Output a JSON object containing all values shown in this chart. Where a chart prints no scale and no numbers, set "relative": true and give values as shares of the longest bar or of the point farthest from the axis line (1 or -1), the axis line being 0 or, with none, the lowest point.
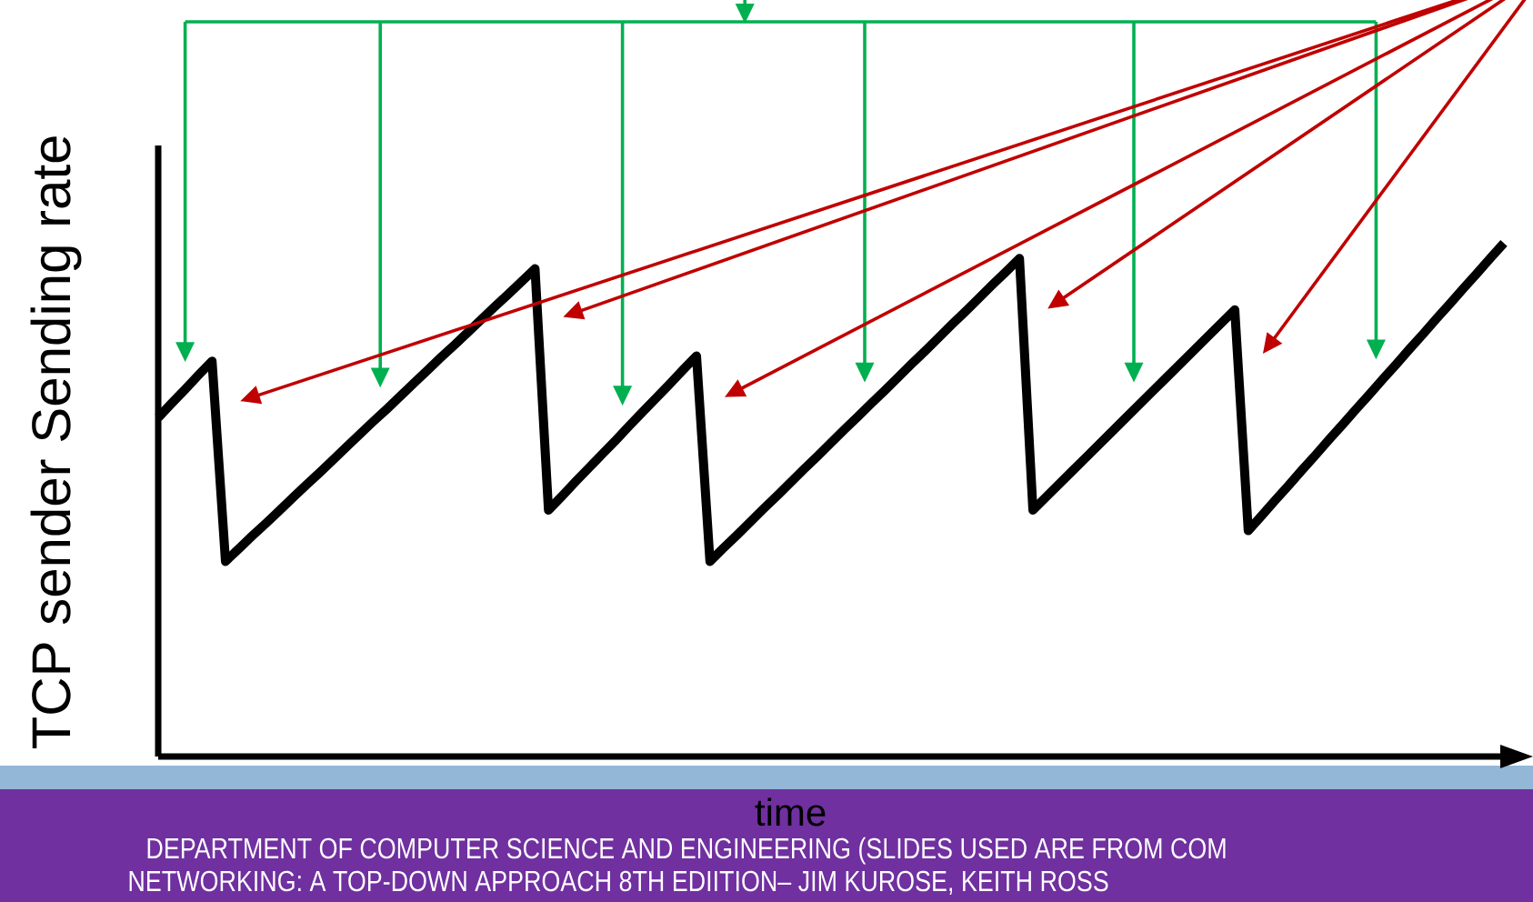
{
  "chart_data": {
    "type": "line",
    "xlabel": "time",
    "ylabel": "TCP sender Sending rate",
    "categories": [
      null,
      null,
      null,
      null,
      null,
      null,
      null,
      null,
      null,
      null,
      null,
      null,
      null,
      null,
      null,
      null,
      null,
      null,
      null,
      null,
      null,
      null,
      null,
      null,
      null,
      null,
      null,
      null,
      null,
      null,
      null,
      null,
      null,
      null,
      null,
      null,
      null,
      null,
      null,
      null,
      null,
      null,
      null,
      null,
      null,
      null,
      null,
      null,
      null,
      null,
      null,
      null,
      null,
      null,
      null,
      null,
      null,
      null,
      null,
      null,
      null,
      null,
      null,
      null,
      null,
      null,
      null,
      null,
      null,
      null,
      null,
      null,
      null,
      null,
      null,
      null,
      null,
      null,
      null,
      null,
      null,
      null,
      null,
      null,
      null,
      null,
      null,
      null,
      null,
      null,
      null,
      null,
      null,
      null,
      null,
      null,
      null,
      null,
      null,
      null,
      null
    ],
    "values": [
      0.66,
      0.688,
      0.715,
      0.743,
      0.77,
      0.38,
      0.405,
      0.43,
      0.454,
      0.479,
      0.504,
      0.529,
      0.553,
      0.578,
      0.603,
      0.628,
      0.653,
      0.677,
      0.702,
      0.727,
      0.752,
      0.777,
      0.801,
      0.826,
      0.851,
      0.876,
      0.9,
      0.925,
      0.95,
      0.48,
      0.507,
      0.535,
      0.562,
      0.589,
      0.616,
      0.644,
      0.671,
      0.698,
      0.725,
      0.753,
      0.78,
      0.38,
      0.406,
      0.431,
      0.457,
      0.483,
      0.508,
      0.534,
      0.56,
      0.585,
      0.611,
      0.637,
      0.662,
      0.688,
      0.713,
      0.739,
      0.765,
      0.79,
      0.816,
      0.842,
      0.867,
      0.893,
      0.919,
      0.944,
      0.97,
      0.48,
      0.506,
      0.532,
      0.558,
      0.584,
      0.61,
      0.636,
      0.662,
      0.688,
      0.714,
      0.74,
      0.766,
      0.792,
      0.818,
      0.844,
      0.87,
      0.44,
      0.469,
      0.499,
      0.528,
      0.558,
      0.587,
      0.617,
      0.646,
      0.676,
      0.705,
      0.735,
      0.764,
      0.794,
      0.823,
      0.853,
      0.882,
      0.912,
      0.941,
      0.971,
      1.0
    ],
    "color": "#000000",
    "relative": true,
    "marker": "none",
    "line_style": "solid",
    "annotations": [
      "DEPARTMENT OF COMPUTER SCIENCE AND ENGINEERING (SLIDES USED ARE FROM COM",
      "NETWORKING: A TOP-DOWN APPROACH 8TH EDIITION– JIM KUROSE, KEITH ROSS"
    ]
  }
}
